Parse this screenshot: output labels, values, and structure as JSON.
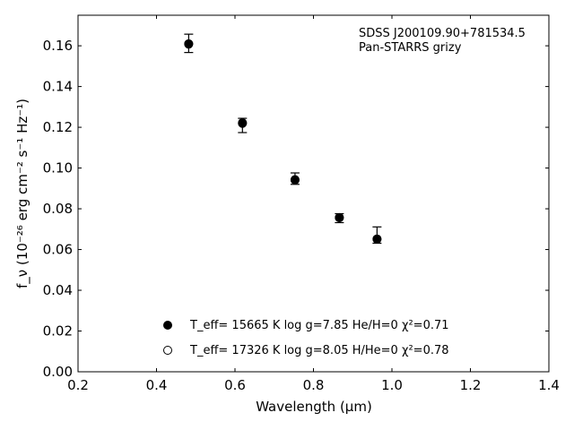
{
  "chart_data": {
    "type": "scatter",
    "xlabel": "Wavelength (μm)",
    "ylabel": "f_ν (10⁻²⁶ erg cm⁻² s⁻¹ Hz⁻¹)",
    "xlim": [
      0.2,
      1.4
    ],
    "ylim": [
      0.0,
      0.175
    ],
    "xticks": [
      "0.2",
      "0.4",
      "0.6",
      "0.8",
      "1.0",
      "1.2",
      "1.4"
    ],
    "yticks": [
      "0.00",
      "0.02",
      "0.04",
      "0.06",
      "0.08",
      "0.10",
      "0.12",
      "0.14",
      "0.16"
    ],
    "annotation": [
      "SDSS J200109.90+781534.5",
      "Pan-STARRS grizy"
    ],
    "grid": false,
    "legend_position": "bottom-center",
    "series": [
      {
        "name": "T_eff= 15665 K  log g=7.85  He/H=0  χ²=0.71",
        "marker": "filled-circle",
        "color": "#000000",
        "x": [
          0.482,
          0.619,
          0.753,
          0.866,
          0.962
        ],
        "y": [
          0.161,
          0.1222,
          0.0943,
          0.0757,
          0.0651
        ]
      },
      {
        "name": "T_eff= 17326 K  log g=8.05  H/He=0  χ²=0.78",
        "marker": "open-circle",
        "color": "#000000",
        "x": [
          0.482,
          0.619,
          0.753,
          0.866,
          0.962
        ],
        "y": [
          0.1608,
          0.1219,
          0.0941,
          0.0756,
          0.0652
        ]
      }
    ],
    "observed": {
      "name": "Pan-STARRS grizy",
      "x": [
        0.482,
        0.619,
        0.753,
        0.866,
        0.962
      ],
      "y": [
        0.1612,
        0.1209,
        0.0948,
        0.0754,
        0.0671
      ],
      "yerr": [
        0.0045,
        0.0035,
        0.0028,
        0.0022,
        0.004
      ]
    }
  }
}
